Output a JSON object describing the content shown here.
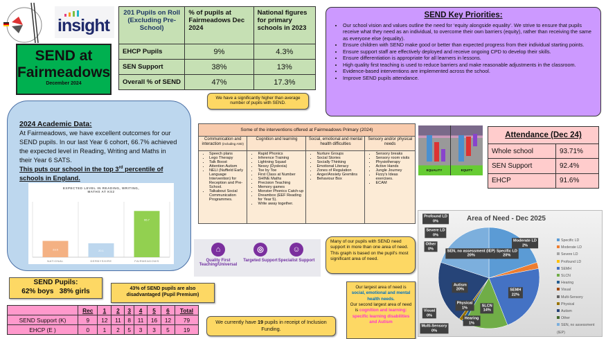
{
  "header": {
    "logo_text": "insight",
    "title_line1": "SEND at",
    "title_line2": "Fairmeadows",
    "date": "December 2024"
  },
  "roll_table": {
    "headers": [
      "201 Pupils on Roll (Excluding Pre-School)",
      "% of pupils at Fairmeadows Dec 2024",
      "National figures for primary schools in 2023"
    ],
    "rows": [
      [
        "EHCP Pupils",
        "9%",
        "4.3%"
      ],
      [
        "SEN Support",
        "38%",
        "13%"
      ],
      [
        "Overall % of SEND",
        "47%",
        "17.3%"
      ]
    ],
    "callout": "We have a significantly higher than average number of pupils with SEND."
  },
  "priorities": {
    "title": "SEND Key Priorities:",
    "items": [
      "Our school vision and values outline the need for ‘equity alongside equality’. We strive to ensure that pupils receive what they need as an individual, to overcome their own barriers (equity), rather than receiving the same as everyone else (equality).",
      "Ensure children with SEND make good or better than expected progress from their individual starting points.",
      "Ensure support staff are effectively deployed and receive ongoing CPD to develop their skills.",
      "Ensure differentiation is appropriate for all learners in lessons.",
      "High quality first teaching is used to reduce barriers and make reasonable adjustments in the classroom.",
      "Evidence-based interventions are implemented across the school.",
      "Improve SEND pupils attendance."
    ]
  },
  "academic": {
    "title": "2024 Academic Data:",
    "body": "At Fairmeadows, we have excellent outcomes for our SEND pupils. In our last Year 6 cohort, 66.7% achieved the expected level in Reading, Writing and Maths in their Year 6 SATS.",
    "highlight_pre": "This puts our school in the top 3",
    "highlight_sup": "rd",
    "highlight_post": " percentile of schools in England."
  },
  "interventions": {
    "title": "Some of the interventions offered at Fairmeadows Primary (2024)",
    "columns": [
      {
        "header": "Communication and interaction",
        "header_note": "(including ASD)",
        "items": [
          "Speech plans",
          "Lego Therapy",
          "Talk Boost",
          "Attention Autism",
          "NELI (Nuffield Early Language Intervention) for Reception and Pre-School.",
          "Talkabout Social Communication Programmes."
        ]
      },
      {
        "header": "Cognition and learning",
        "header_note": "",
        "items": [
          "Rapid Phonics",
          "Inference Training",
          "Lightning Squad",
          "Nessy (Dyslexia)",
          "Toe by Toe",
          "First Class at Number",
          "SHINE Maths",
          "Precision Teaching",
          "Memory games",
          "Monster Phonics Catch-up",
          "Dreambox (EEF Reading for Year 5).",
          "Write away together."
        ]
      },
      {
        "header": "Social, emotional and mental health difficulties",
        "header_note": "",
        "items": [
          "Nurture Groups",
          "Social Stories",
          "Socially Thinking",
          "Emotional Literacy",
          "Zones of Regulation",
          "Anger/Anxiety Gremlins",
          "Behaviour Box"
        ]
      },
      {
        "header": "Sensory and/or physical needs",
        "header_note": "",
        "items": [
          "Sensory breaks",
          "Sensory room visits",
          "Physiotherapy",
          "Active Hands",
          "Jungle Journey",
          "Fizzy's Ideas exercises.",
          "ECAM"
        ]
      }
    ]
  },
  "equity_image": {
    "left_label": "EQUALITY",
    "right_label": "EQUITY"
  },
  "attendance": {
    "title": "Attendance (Dec 24)",
    "rows": [
      [
        "Whole school",
        "93.71%"
      ],
      [
        "SEN Support",
        "92.4%"
      ],
      [
        "EHCP",
        "91.6%"
      ]
    ]
  },
  "support_tiers": [
    {
      "label": "Quality First Teaching/Universal"
    },
    {
      "label": "Targeted Support"
    },
    {
      "label": "Specialist Support"
    }
  ],
  "need_callout": "Many of our pupils with SEND need support in more than one area of need. This graph is based on the pupil's most significant area of need.",
  "largest_callout": {
    "pre1": "Our largest area of need is ",
    "hl1": "social, emotional and mental health needs.",
    "pre2": "Our second largest area of need is ",
    "hl2": "cognition and learning: specific learning disabilities and Autism"
  },
  "gender_callout": {
    "title": "SEND Pupils:",
    "text": "62% boys   38% girls"
  },
  "pp_callout": "43% of SEND pupils are also disadvantaged (Pupil Premium)",
  "funding_callout": {
    "pre": "We currently have ",
    "num": "19",
    "post": " pupils in receipt of Inclusion Funding."
  },
  "pupils_table": {
    "headers": [
      "",
      "Rec",
      "1",
      "2",
      "3",
      "4",
      "5",
      "6",
      "Total"
    ],
    "rows": [
      [
        "SEND Support (K)",
        "9",
        "12",
        "11",
        "8",
        "11",
        "16",
        "12",
        "79"
      ],
      [
        "EHCP (E )",
        "0",
        "1",
        "2",
        "5",
        "3",
        "3",
        "5",
        "19"
      ]
    ]
  },
  "chart_data": [
    {
      "type": "bar",
      "title": "EXPECTED LEVEL IN READING, WRITING, MATHS AT KS2",
      "categories": [
        "NATIONAL",
        "DERBYSHIRE",
        "FAIRMEADOWS"
      ],
      "values": [
        23.5,
        20.1,
        66.7
      ],
      "labels": [
        "23.5",
        "20.1",
        "66.7"
      ],
      "colors": [
        "#f4b183",
        "#bdd7ee",
        "#92d050"
      ],
      "ylim": [
        0,
        80
      ]
    },
    {
      "type": "pie",
      "title": "Area of Need - Dec 2025",
      "legend": "right",
      "slices": [
        {
          "name": "Specific LD",
          "value": 20,
          "label": "20%",
          "color": "#5b9bd5"
        },
        {
          "name": "Moderate LD",
          "value": 2,
          "label": "2%",
          "color": "#ed7d31"
        },
        {
          "name": "Severe LD",
          "value": 0,
          "label": "0%",
          "color": "#a5a5a5"
        },
        {
          "name": "Profound LD",
          "value": 0,
          "label": "0%",
          "color": "#ffc000"
        },
        {
          "name": "SEMH",
          "value": 22,
          "label": "22%",
          "color": "#4472c4"
        },
        {
          "name": "SLCN",
          "value": 14,
          "label": "14%",
          "color": "#70ad47"
        },
        {
          "name": "Hearing",
          "value": 1,
          "label": "1%",
          "color": "#255e91"
        },
        {
          "name": "Visual",
          "value": 0,
          "label": "0%",
          "color": "#9e480e"
        },
        {
          "name": "Multi-Sensory",
          "value": 0,
          "label": "0%",
          "color": "#636363"
        },
        {
          "name": "Physical",
          "value": 1,
          "label": "1%",
          "color": "#997300"
        },
        {
          "name": "Autism",
          "value": 20,
          "label": "20%",
          "color": "#264478"
        },
        {
          "name": "Other",
          "value": 0,
          "label": "0%",
          "color": "#43682b"
        },
        {
          "name": "SEN, no assessment (IEP)",
          "value": 20,
          "label": "20%",
          "color": "#7cafdd"
        }
      ]
    }
  ]
}
